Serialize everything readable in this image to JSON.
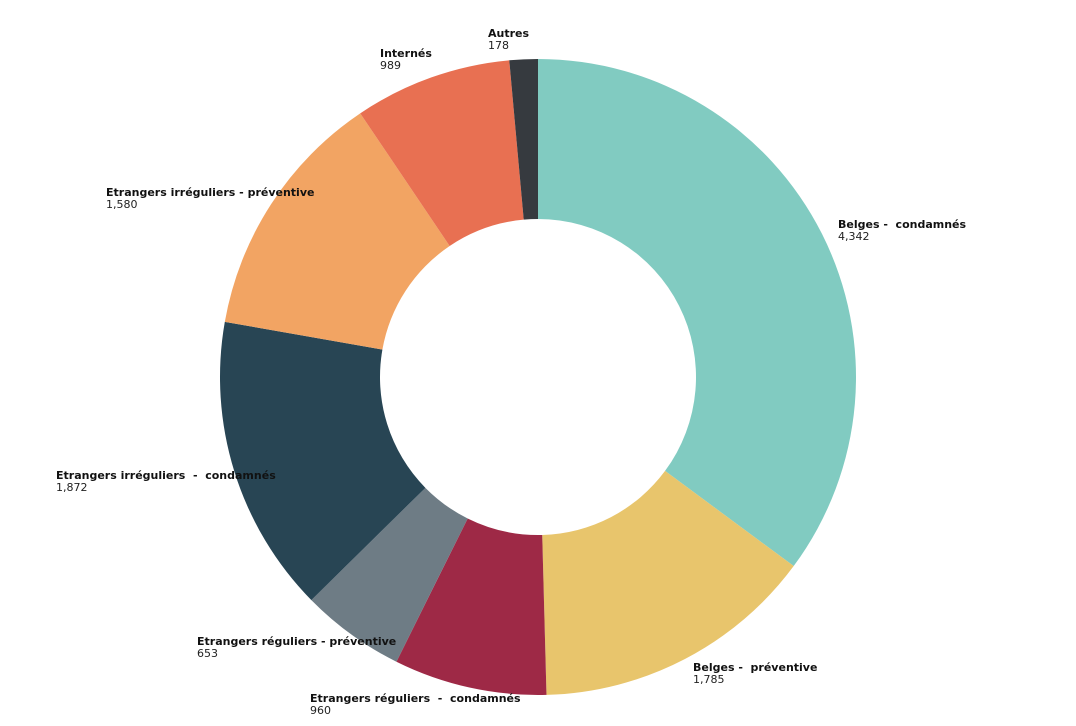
{
  "chart_data": {
    "type": "pie",
    "subtype": "donut",
    "title": "",
    "start": "top",
    "direction": "clockwise",
    "slices": [
      {
        "name": "Belges -  condamnés",
        "value": 4342,
        "value_label": "4,342",
        "color": "#81cbc1"
      },
      {
        "name": "Belges -  préventive",
        "value": 1785,
        "value_label": "1,785",
        "color": "#e8c56c"
      },
      {
        "name": "Etrangers réguliers  -  condamnés",
        "value": 960,
        "value_label": "960",
        "color": "#9e2946"
      },
      {
        "name": "Etrangers réguliers - préventive",
        "value": 653,
        "value_label": "653",
        "color": "#6e7c85"
      },
      {
        "name": "Etrangers irréguliers  -  condamnés",
        "value": 1872,
        "value_label": "1,872",
        "color": "#284554"
      },
      {
        "name": "Etrangers irréguliers - préventive",
        "value": 1580,
        "value_label": "1,580",
        "color": "#f2a463"
      },
      {
        "name": "Internés",
        "value": 989,
        "value_label": "989",
        "color": "#e87052"
      },
      {
        "name": "Autres",
        "value": 178,
        "value_label": "178",
        "color": "#363a3f"
      }
    ]
  }
}
